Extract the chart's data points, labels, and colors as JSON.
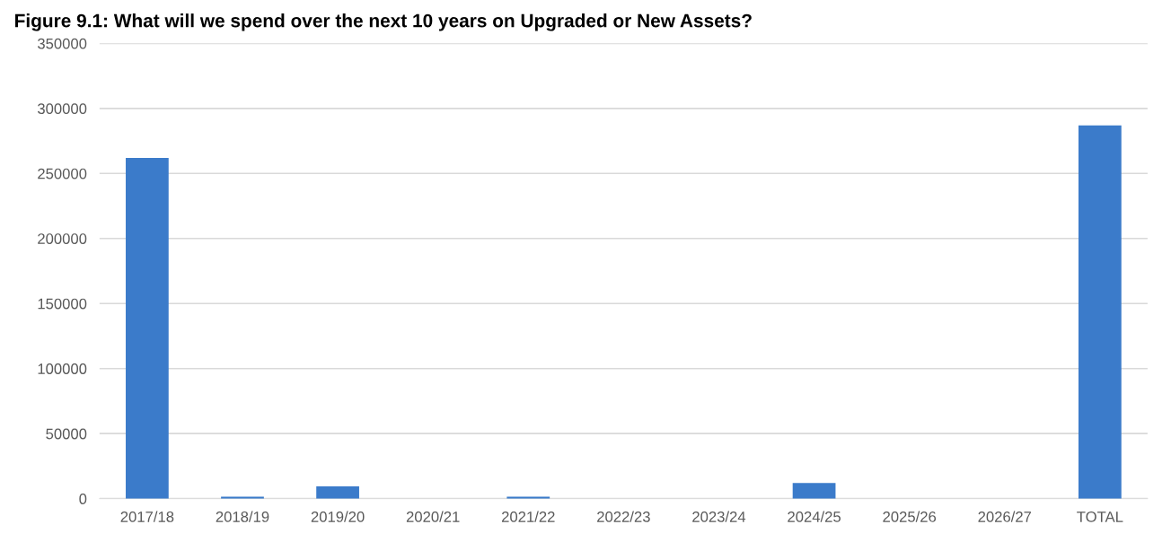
{
  "chart_data": {
    "type": "bar",
    "title": "Figure 9.1: What will we spend over the next 10 years on Upgraded or New Assets?",
    "categories": [
      "2017/18",
      "2018/19",
      "2019/20",
      "2020/21",
      "2021/22",
      "2022/23",
      "2023/24",
      "2024/25",
      "2025/26",
      "2026/27",
      "TOTAL"
    ],
    "values": [
      262000,
      1500,
      9500,
      0,
      1500,
      0,
      0,
      12000,
      0,
      0,
      287000
    ],
    "color": "#3b7bca",
    "ylim": [
      0,
      350000
    ],
    "yticks": [
      0,
      50000,
      100000,
      150000,
      200000,
      250000,
      300000,
      350000
    ],
    "grid": "y"
  }
}
